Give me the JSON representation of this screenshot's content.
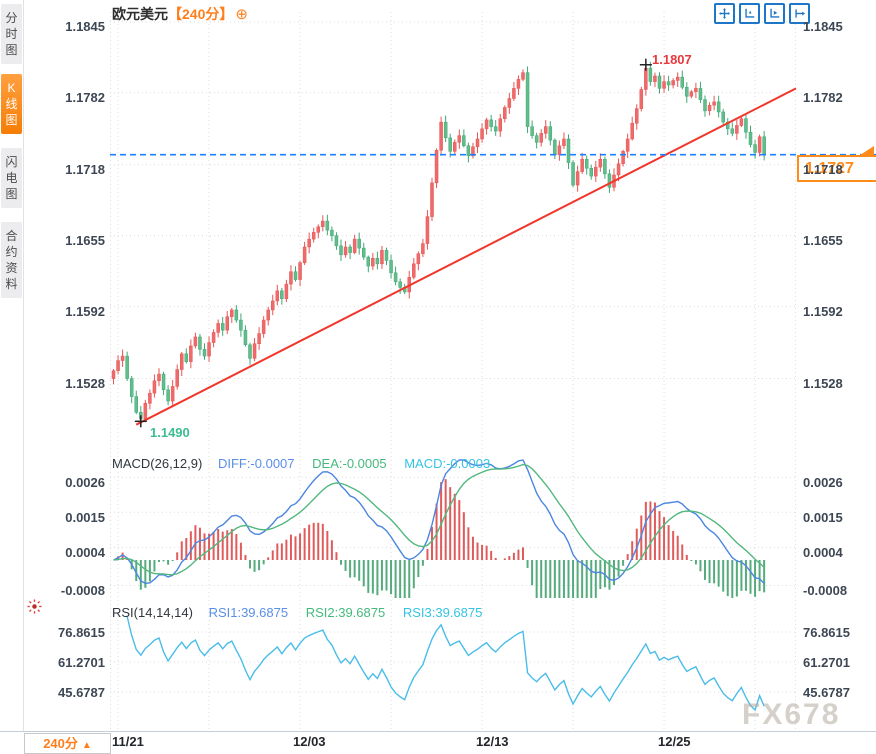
{
  "window": {
    "symbol": "欧元美元",
    "period": "【240分】",
    "add_indicator_icon": "⊕"
  },
  "sidebar": {
    "items": [
      {
        "label": "分时图",
        "active": false
      },
      {
        "label": "K线图",
        "active": true
      },
      {
        "label": "闪电图",
        "active": false
      },
      {
        "label": "合约资料",
        "active": false
      }
    ]
  },
  "toolbar": {
    "icons": [
      "move-crosshair",
      "axes-zoom",
      "axes-play",
      "pan-right"
    ]
  },
  "price_panel": {
    "axis_labels": [
      "1.1845",
      "1.1782",
      "1.1718",
      "1.1655",
      "1.1592",
      "1.1528"
    ],
    "axis_values": [
      1.1845,
      1.1782,
      1.1718,
      1.1655,
      1.1592,
      1.1528
    ],
    "high_label": "1.1807",
    "low_label": "1.1490",
    "current_price_label": "1.1727"
  },
  "macd_panel": {
    "header": "MACD(26,12,9)",
    "diff_label": "DIFF:-0.0007",
    "dea_label": "DEA:-0.0005",
    "macd_label": "MACD:-0.0003",
    "axis_labels": [
      "0.0026",
      "0.0015",
      "0.0004",
      "-0.0008"
    ],
    "axis_values": [
      0.0026,
      0.0015,
      0.0004,
      -0.0008
    ]
  },
  "rsi_panel": {
    "header": "RSI(14,14,14)",
    "rsi1_label": "RSI1:39.6875",
    "rsi2_label": "RSI2:39.6875",
    "rsi3_label": "RSI3:39.6875",
    "axis_labels": [
      "76.8615",
      "61.2701",
      "45.6787"
    ],
    "axis_values": [
      76.8615,
      61.2701,
      45.6787
    ]
  },
  "x_axis": {
    "dates": [
      "11/21",
      "12/03",
      "12/13",
      "12/25"
    ],
    "date_indexes": [
      1,
      41,
      81,
      121
    ]
  },
  "bottom_bar": {
    "period_button": "240分",
    "period_arrow": "▲"
  },
  "watermark": "FX678",
  "colors": {
    "up": "#ee6b6b",
    "up_stroke": "#e85555",
    "down": "#62bd8c",
    "down_stroke": "#3fa874",
    "trendline": "#f2352b",
    "current_line": "#1e80ff",
    "diff_line": "#4b86e0",
    "dea_line": "#52b87e",
    "hist_up": "#e05b5b",
    "hist_down": "#55ab7c",
    "rsi_line": "#49bde8",
    "grid": "#dcdce2",
    "accent_orange": "#ff7f1e"
  },
  "chart_data": {
    "type": "candlestick",
    "title": "欧元美元 240分",
    "legend_position": "top",
    "grid": true,
    "y_axis_ticks": [
      1.1845,
      1.1782,
      1.1718,
      1.1655,
      1.1592,
      1.1528
    ],
    "x_tick_labels": [
      "11/21",
      "12/03",
      "12/13",
      "12/25"
    ],
    "open_first": 1.1528,
    "closes": [
      1.1535,
      1.1544,
      1.1548,
      1.1528,
      1.1512,
      1.1498,
      1.1492,
      1.1506,
      1.1515,
      1.1526,
      1.1532,
      1.1518,
      1.1508,
      1.1521,
      1.1536,
      1.155,
      1.1543,
      1.1557,
      1.1565,
      1.1554,
      1.1548,
      1.156,
      1.1569,
      1.1577,
      1.1571,
      1.1583,
      1.1589,
      1.158,
      1.1571,
      1.1558,
      1.1546,
      1.1559,
      1.1568,
      1.158,
      1.1589,
      1.1597,
      1.1606,
      1.1599,
      1.1612,
      1.1623,
      1.1616,
      1.1631,
      1.1645,
      1.1652,
      1.1658,
      1.1663,
      1.1668,
      1.166,
      1.1655,
      1.1646,
      1.1638,
      1.1645,
      1.164,
      1.1652,
      1.1644,
      1.1636,
      1.1628,
      1.1635,
      1.163,
      1.1642,
      1.1633,
      1.1622,
      1.1614,
      1.1609,
      1.1605,
      1.1618,
      1.163,
      1.1639,
      1.1648,
      1.1672,
      1.1702,
      1.1731,
      1.1756,
      1.1742,
      1.173,
      1.1738,
      1.1744,
      1.1735,
      1.1726,
      1.1734,
      1.1741,
      1.175,
      1.1758,
      1.1752,
      1.1748,
      1.1759,
      1.1769,
      1.1777,
      1.1786,
      1.1794,
      1.18,
      1.1752,
      1.1744,
      1.1738,
      1.1746,
      1.1752,
      1.174,
      1.1727,
      1.1735,
      1.1741,
      1.172,
      1.17,
      1.1712,
      1.1723,
      1.1715,
      1.1708,
      1.1716,
      1.1723,
      1.171,
      1.1698,
      1.1709,
      1.1719,
      1.173,
      1.1741,
      1.1755,
      1.1768,
      1.1785,
      1.1804,
      1.1792,
      1.1797,
      1.1786,
      1.1792,
      1.1789,
      1.1793,
      1.1796,
      1.1787,
      1.1779,
      1.1783,
      1.1786,
      1.1776,
      1.1766,
      1.1771,
      1.1774,
      1.1765,
      1.1756,
      1.175,
      1.1746,
      1.1753,
      1.1759,
      1.1747,
      1.1736,
      1.1729,
      1.1743,
      1.1727
    ],
    "high_point": {
      "index": 117,
      "value": 1.1807
    },
    "low_point": {
      "index": 6,
      "value": 1.149
    },
    "current_price": 1.1727,
    "trendline": {
      "start_index": 5,
      "start_price": 1.1487,
      "end_index": 150,
      "end_price": 1.1786
    },
    "macd": {
      "params": [
        26,
        12,
        9
      ],
      "diff": -0.0007,
      "dea": -0.0005,
      "macd": -0.0003,
      "axis": [
        0.0026,
        0.0015,
        0.0004,
        -0.0008
      ]
    },
    "rsi": {
      "params": [
        14,
        14,
        14
      ],
      "rsi1": 39.6875,
      "rsi2": 39.6875,
      "rsi3": 39.6875,
      "axis": [
        76.8615,
        61.2701,
        45.6787
      ]
    }
  }
}
